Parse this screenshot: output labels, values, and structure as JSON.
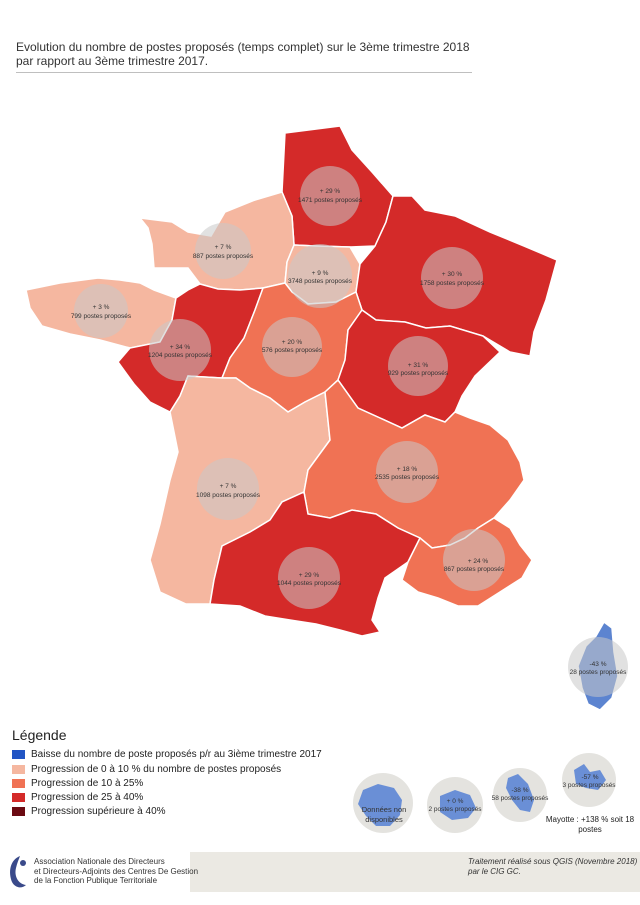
{
  "title": "Evolution du nombre de postes proposés (temps complet) sur le 3ème trimestre 2018 par rapport au 3ème trimestre 2017.",
  "colors": {
    "baisse": "#2255c4",
    "p0_10": "#f5b7a0",
    "p10_25": "#f07254",
    "p25_40": "#d42a29",
    "p40plus": "#6b0a12",
    "nodata": "#e0dfdc"
  },
  "regions": [
    {
      "name": "hauts-de-france",
      "category": "p25_40",
      "pct": "+ 29 %",
      "postes": "1471 postes proposés"
    },
    {
      "name": "normandie",
      "category": "p0_10",
      "pct": "+ 7 %",
      "postes": "887 postes proposés"
    },
    {
      "name": "ile-de-france",
      "category": "p0_10",
      "pct": "+ 9 %",
      "postes": "3748 postes proposés"
    },
    {
      "name": "grand-est",
      "category": "p25_40",
      "pct": "+ 30 %",
      "postes": "1758 postes proposés"
    },
    {
      "name": "bretagne",
      "category": "p0_10",
      "pct": "+ 3 %",
      "postes": "799 postes proposés"
    },
    {
      "name": "pays-de-la-loire",
      "category": "p25_40",
      "pct": "+ 34 %",
      "postes": "1204 postes proposés"
    },
    {
      "name": "centre-val-de-loire",
      "category": "p10_25",
      "pct": "+ 20 %",
      "postes": "576 postes proposés"
    },
    {
      "name": "bourgogne-franche-comte",
      "category": "p25_40",
      "pct": "+ 31 %",
      "postes": "929 postes proposés"
    },
    {
      "name": "nouvelle-aquitaine",
      "category": "p0_10",
      "pct": "+ 7 %",
      "postes": "1098 postes proposés"
    },
    {
      "name": "auvergne-rhone-alpes",
      "category": "p10_25",
      "pct": "+ 18 %",
      "postes": "2535 postes proposés"
    },
    {
      "name": "occitanie",
      "category": "p25_40",
      "pct": "+ 29 %",
      "postes": "1044 postes proposés"
    },
    {
      "name": "paca",
      "category": "p10_25",
      "pct": "+ 24 %",
      "postes": "867 postes proposés"
    },
    {
      "name": "corse",
      "category": "baisse",
      "pct": "-43 %",
      "postes": "28 postes proposés"
    }
  ],
  "dom": [
    {
      "name": "guyane",
      "label1": "Données non",
      "label2": "disponibles"
    },
    {
      "name": "reunion",
      "pct": "+ 0 %",
      "postes": "2 postes proposés"
    },
    {
      "name": "martinique",
      "pct": "-38 %",
      "postes": "58 postes proposés"
    },
    {
      "name": "guadeloupe",
      "pct": "-57 %",
      "postes": "3 postes proposés"
    }
  ],
  "mayotte_note": "Mayotte : +138 % soit 18 postes",
  "legend": {
    "title": "Légende",
    "items": [
      {
        "color": "#2255c4",
        "label": "Baisse du nombre de poste proposés p/r au 3ième trimestre 2017"
      },
      {
        "color": "#f5b7a0",
        "label": "Progression de 0 à 10 % du nombre de postes proposés"
      },
      {
        "color": "#f07254",
        "label": "Progression de 10 à 25%"
      },
      {
        "color": "#d42a29",
        "label": "Progression de 25 à 40%"
      },
      {
        "color": "#6b0a12",
        "label": "Progression supérieure à 40%"
      }
    ]
  },
  "footer": {
    "org_line1": "Association Nationale des Directeurs",
    "org_line2": "et Directeurs-Adjoints des Centres De Gestion",
    "org_line3": "de la Fonction Publique Territoriale",
    "credit": "Traitement réalisé sous QGIS (Novembre 2018) par le CIG GC."
  }
}
